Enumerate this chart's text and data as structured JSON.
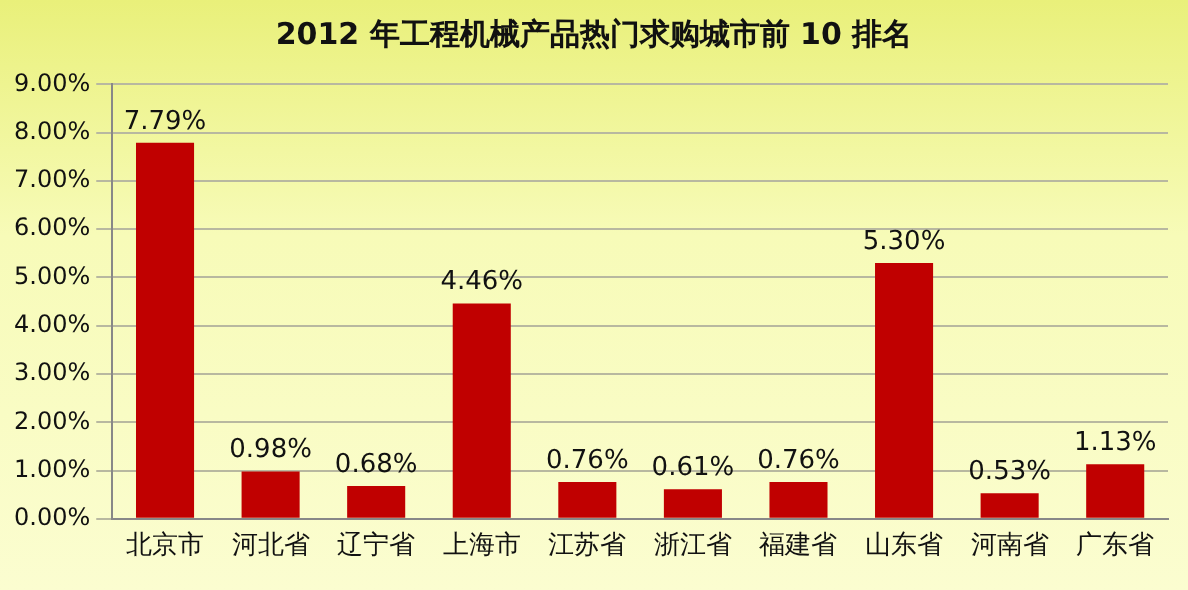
{
  "chart_data": {
    "type": "bar",
    "title": "2012 年工程机械产品热门求购城市前 10 排名",
    "categories": [
      "北京市",
      "河北省",
      "辽宁省",
      "上海市",
      "江苏省",
      "浙江省",
      "福建省",
      "山东省",
      "河南省",
      "广东省"
    ],
    "values": [
      7.79,
      0.98,
      0.68,
      4.46,
      0.76,
      0.61,
      0.76,
      5.3,
      0.53,
      1.13
    ],
    "value_labels": [
      "7.79%",
      "0.98%",
      "0.68%",
      "4.46%",
      "0.76%",
      "0.61%",
      "0.76%",
      "5.30%",
      "0.53%",
      "1.13%"
    ],
    "color": "#c00000",
    "ylim": [
      0,
      9
    ],
    "yticks": [
      {
        "value": 0,
        "label": "0.00%"
      },
      {
        "value": 1,
        "label": "1.00%"
      },
      {
        "value": 2,
        "label": "2.00%"
      },
      {
        "value": 3,
        "label": "3.00%"
      },
      {
        "value": 4,
        "label": "4.00%"
      },
      {
        "value": 5,
        "label": "5.00%"
      },
      {
        "value": 6,
        "label": "6.00%"
      },
      {
        "value": 7,
        "label": "7.00%"
      },
      {
        "value": 8,
        "label": "8.00%"
      },
      {
        "value": 9,
        "label": "9.00%"
      }
    ],
    "grid": "y"
  }
}
